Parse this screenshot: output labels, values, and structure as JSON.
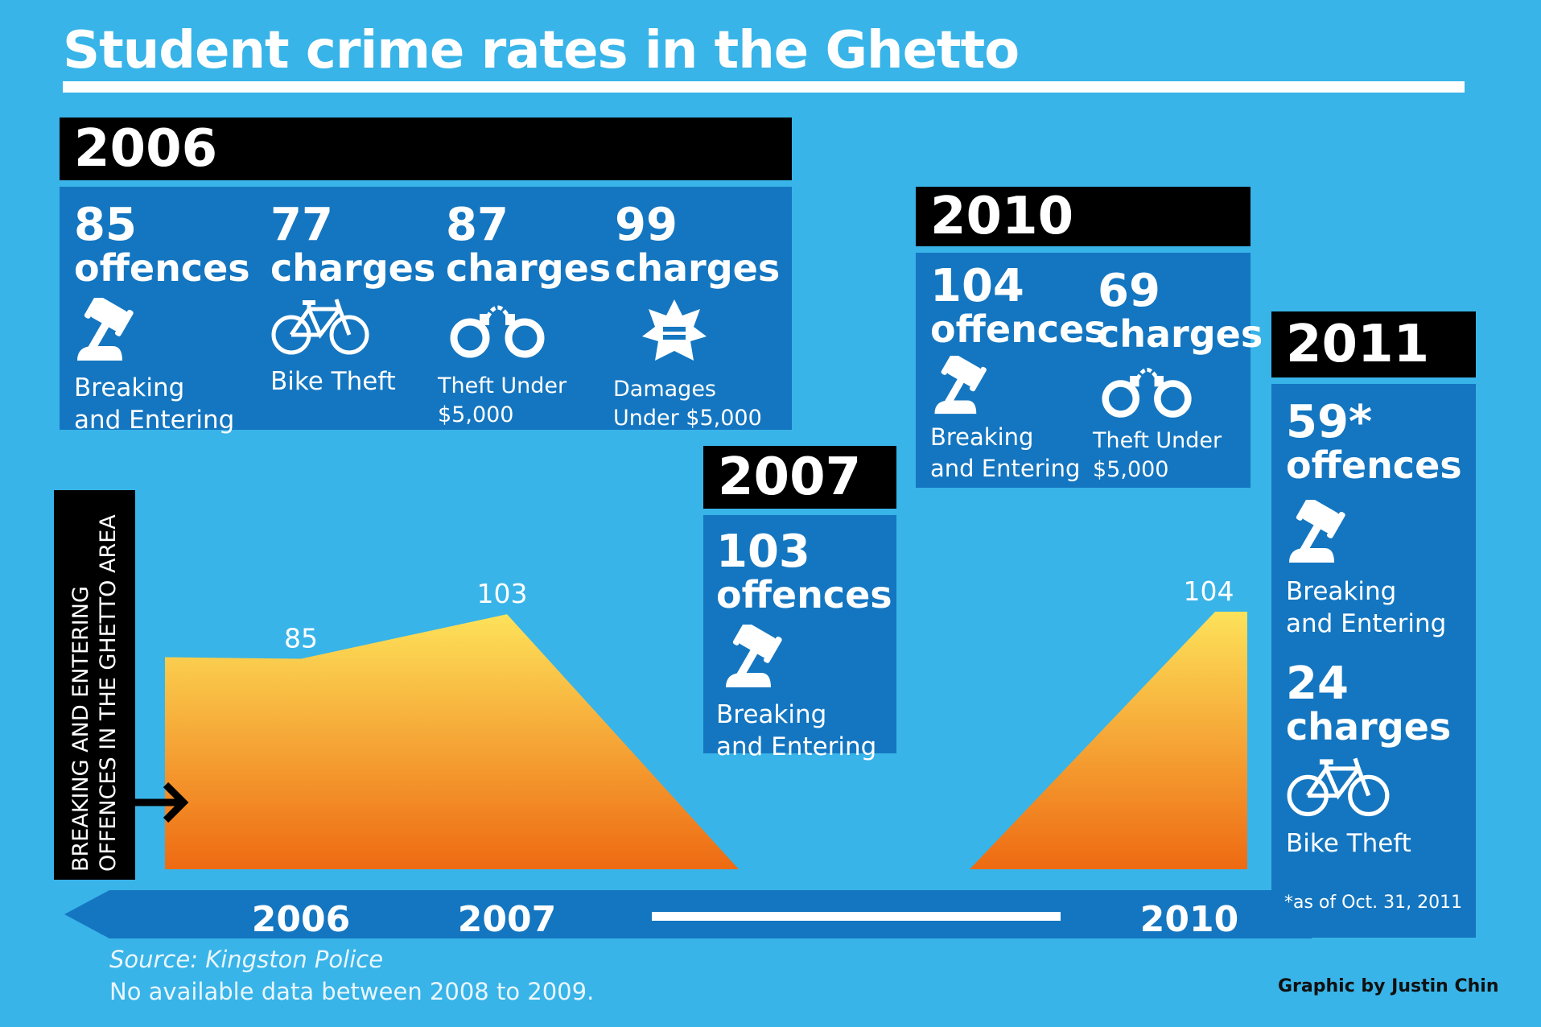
{
  "title": "Student crime rates in the Ghetto",
  "colors": {
    "background": "#38b4e8",
    "panel": "#1476c0",
    "bar": "#000000",
    "fill_top": "#fde25a",
    "fill_bottom": "#ee6a12"
  },
  "panels": {
    "y2006": {
      "year": "2006",
      "stats": [
        {
          "value": "85",
          "unit": "offences",
          "icon": "gavel-icon",
          "label1": "Breaking",
          "label2": "and Entering"
        },
        {
          "value": "77",
          "unit": "charges",
          "icon": "bicycle-icon",
          "label1": "Bike Theft",
          "label2": ""
        },
        {
          "value": "87",
          "unit": "charges",
          "icon": "handcuffs-icon",
          "label1": "Theft Under",
          "label2": "$5,000"
        },
        {
          "value": "99",
          "unit": "charges",
          "icon": "badge-icon",
          "label1": "Damages",
          "label2": "Under $5,000"
        }
      ]
    },
    "y2007": {
      "year": "2007",
      "stats": [
        {
          "value": "103",
          "unit": "offences",
          "icon": "gavel-icon",
          "label1": "Breaking",
          "label2": "and Entering"
        }
      ]
    },
    "y2010": {
      "year": "2010",
      "stats": [
        {
          "value": "104",
          "unit": "offences",
          "icon": "gavel-icon",
          "label1": "Breaking",
          "label2": "and Entering"
        },
        {
          "value": "69",
          "unit": "charges",
          "icon": "handcuffs-icon",
          "label1": "Theft Under",
          "label2": "$5,000"
        }
      ]
    },
    "y2011": {
      "year": "2011",
      "stats": [
        {
          "value": "59*",
          "unit": "offences",
          "icon": "gavel-icon",
          "label1": "Breaking",
          "label2": "and Entering"
        },
        {
          "value": "24",
          "unit": "charges",
          "icon": "bicycle-icon",
          "label1": "Bike Theft",
          "label2": ""
        }
      ],
      "footnote": "*as of Oct. 31, 2011"
    }
  },
  "chart_data": {
    "type": "area",
    "ylabel_line1": "BREAKING AND ENTERING",
    "ylabel_line2": "OFFENCES IN THE GHETTO AREA",
    "x": [
      "2006",
      "2007",
      "2010"
    ],
    "values": [
      85,
      103,
      104
    ],
    "value_labels": [
      "85",
      "103",
      "104"
    ],
    "gap_note": "No available data between 2008 to 2009."
  },
  "source": "Source: Kingston Police",
  "credit": "Graphic by Justin Chin"
}
